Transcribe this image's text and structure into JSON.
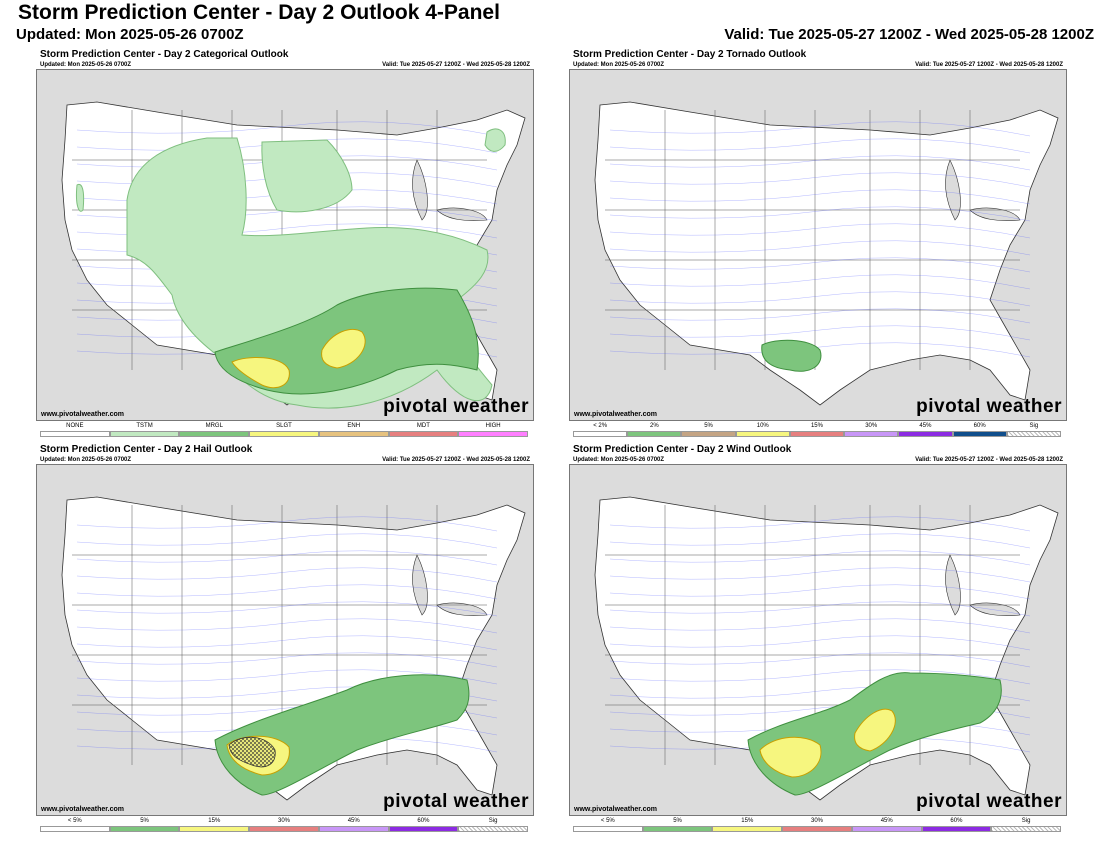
{
  "header": {
    "title": "Storm Prediction Center - Day 2 Outlook 4-Panel",
    "updated": "Updated: Mon 2025-05-26 0700Z",
    "valid": "Valid: Tue 2025-05-27 1200Z - Wed 2025-05-28 1200Z"
  },
  "colors": {
    "land": "#ffffff",
    "water": "#dcdcdc",
    "roads": "#4a55ff",
    "tstm": "#c1e9c1",
    "mrgl_cat": "#7dc57d",
    "slgt": "#f6f67f",
    "enh": "#e6c27f",
    "mdt": "#e67f7f",
    "high": "#ff7fff",
    "p2": "#7dc57d",
    "p5": "#c4a484",
    "p10": "#f6f67f",
    "p15": "#e67f7f",
    "p30": "#c896f7",
    "p45": "#8c2be2",
    "p60": "#104e8b"
  },
  "panels": [
    {
      "id": "categorical",
      "title": "Storm Prediction Center - Day 2 Categorical Outlook",
      "updated": "Updated: Mon 2025-05-26 0700Z",
      "valid": "Valid: Tue 2025-05-27 1200Z - Wed 2025-05-28 1200Z",
      "site": "www.pivotalweather.com",
      "logo": "pivotal weather",
      "legend": [
        {
          "label": "NONE",
          "color": "#ffffff"
        },
        {
          "label": "TSTM",
          "color": "#c1e9c1"
        },
        {
          "label": "MRGL",
          "color": "#7dc57d"
        },
        {
          "label": "SLGT",
          "color": "#f6f67f"
        },
        {
          "label": "ENH",
          "color": "#e6c27f"
        },
        {
          "label": "MDT",
          "color": "#e67f7f"
        },
        {
          "label": "HIGH",
          "color": "#ff7fff"
        }
      ]
    },
    {
      "id": "tornado",
      "title": "Storm Prediction Center - Day 2 Tornado Outlook",
      "updated": "Updated: Mon 2025-05-26 0700Z",
      "valid": "Valid: Tue 2025-05-27 1200Z - Wed 2025-05-28 1200Z",
      "site": "www.pivotalweather.com",
      "logo": "pivotal weather",
      "legend": [
        {
          "label": "< 2%",
          "color": "#ffffff"
        },
        {
          "label": "2%",
          "color": "#7dc57d"
        },
        {
          "label": "5%",
          "color": "#c4a484"
        },
        {
          "label": "10%",
          "color": "#f6f67f"
        },
        {
          "label": "15%",
          "color": "#e67f7f"
        },
        {
          "label": "30%",
          "color": "#c896f7"
        },
        {
          "label": "45%",
          "color": "#8c2be2"
        },
        {
          "label": "60%",
          "color": "#104e8b"
        },
        {
          "label": "Sig",
          "color": "hatch"
        }
      ]
    },
    {
      "id": "hail",
      "title": "Storm Prediction Center - Day 2 Hail Outlook",
      "updated": "Updated: Mon 2025-05-26 0700Z",
      "valid": "Valid: Tue 2025-05-27 1200Z - Wed 2025-05-28 1200Z",
      "site": "www.pivotalweather.com",
      "logo": "pivotal weather",
      "legend": [
        {
          "label": "< 5%",
          "color": "#ffffff"
        },
        {
          "label": "5%",
          "color": "#7dc57d"
        },
        {
          "label": "15%",
          "color": "#f6f67f"
        },
        {
          "label": "30%",
          "color": "#e67f7f"
        },
        {
          "label": "45%",
          "color": "#c896f7"
        },
        {
          "label": "60%",
          "color": "#8c2be2"
        },
        {
          "label": "Sig",
          "color": "hatch"
        }
      ]
    },
    {
      "id": "wind",
      "title": "Storm Prediction Center - Day 2 Wind Outlook",
      "updated": "Updated: Mon 2025-05-26 0700Z",
      "valid": "Valid: Tue 2025-05-27 1200Z - Wed 2025-05-28 1200Z",
      "site": "www.pivotalweather.com",
      "logo": "pivotal weather",
      "legend": [
        {
          "label": "< 5%",
          "color": "#ffffff"
        },
        {
          "label": "5%",
          "color": "#7dc57d"
        },
        {
          "label": "15%",
          "color": "#f6f67f"
        },
        {
          "label": "30%",
          "color": "#e67f7f"
        },
        {
          "label": "45%",
          "color": "#c896f7"
        },
        {
          "label": "60%",
          "color": "#8c2be2"
        },
        {
          "label": "Sig",
          "color": "hatch"
        }
      ]
    }
  ]
}
